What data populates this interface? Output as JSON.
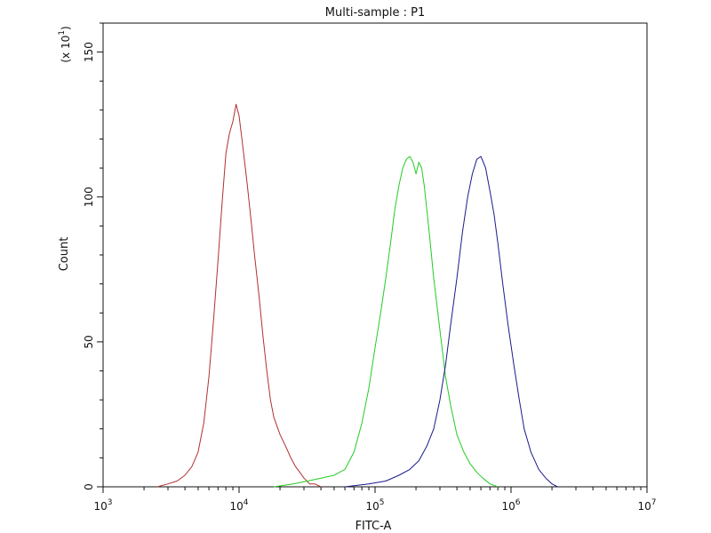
{
  "chart_data": {
    "type": "line",
    "title": "Multi-sample : P1",
    "xlabel": "FITC-A",
    "ylabel": "Count",
    "y_multiplier_label": "(x 10",
    "y_multiplier_exp": "1",
    "y_multiplier_close": ")",
    "x_scale": "log",
    "xlim": [
      1000,
      10000000
    ],
    "ylim": [
      0,
      160
    ],
    "x_ticks": [
      {
        "value": 1000,
        "base": "10",
        "exp": "3"
      },
      {
        "value": 10000,
        "base": "10",
        "exp": "4"
      },
      {
        "value": 100000,
        "base": "10",
        "exp": "5"
      },
      {
        "value": 1000000,
        "base": "10",
        "exp": "6"
      },
      {
        "value": 10000000,
        "base": "10",
        "exp": "7"
      }
    ],
    "y_ticks": [
      0,
      50,
      100,
      150
    ],
    "grid": false,
    "series": [
      {
        "color": "#b03030",
        "x": [
          2500,
          3000,
          3500,
          4000,
          4500,
          5000,
          5500,
          6000,
          6500,
          7000,
          7500,
          8000,
          8500,
          9000,
          9500,
          10000,
          10500,
          11000,
          11500,
          12000,
          12500,
          13000,
          14000,
          15000,
          16000,
          17000,
          18000,
          20000,
          22000,
          24000,
          26000,
          28000,
          30000,
          33000,
          36000,
          40000
        ],
        "y": [
          0,
          1,
          2,
          4,
          7,
          12,
          22,
          38,
          58,
          78,
          98,
          115,
          122,
          126,
          132,
          128,
          120,
          112,
          104,
          96,
          88,
          80,
          66,
          52,
          40,
          30,
          24,
          18,
          14,
          10,
          7,
          5,
          3,
          1,
          1,
          0
        ]
      },
      {
        "color": "#22cc22",
        "x": [
          18000,
          25000,
          32000,
          40000,
          50000,
          60000,
          70000,
          80000,
          90000,
          100000,
          110000,
          120000,
          130000,
          140000,
          150000,
          160000,
          170000,
          180000,
          190000,
          200000,
          210000,
          220000,
          230000,
          250000,
          270000,
          300000,
          330000,
          360000,
          400000,
          450000,
          500000,
          560000,
          620000,
          700000,
          800000
        ],
        "y": [
          0,
          1,
          2,
          3,
          4,
          6,
          12,
          22,
          34,
          48,
          60,
          72,
          84,
          96,
          104,
          110,
          113,
          114,
          112,
          108,
          112,
          110,
          104,
          88,
          72,
          54,
          38,
          28,
          18,
          12,
          8,
          5,
          3,
          1,
          0
        ]
      },
      {
        "color": "#1a1a8c",
        "x": [
          60000,
          90000,
          120000,
          150000,
          180000,
          210000,
          240000,
          270000,
          300000,
          330000,
          360000,
          400000,
          440000,
          480000,
          520000,
          560000,
          600000,
          650000,
          700000,
          750000,
          800000,
          870000,
          950000,
          1050000,
          1150000,
          1250000,
          1400000,
          1600000,
          1800000,
          2000000,
          2200000
        ],
        "y": [
          0,
          1,
          2,
          4,
          6,
          9,
          14,
          20,
          30,
          42,
          56,
          72,
          88,
          100,
          108,
          113,
          114,
          110,
          102,
          94,
          84,
          70,
          56,
          42,
          30,
          20,
          12,
          6,
          3,
          1,
          0
        ]
      }
    ]
  }
}
